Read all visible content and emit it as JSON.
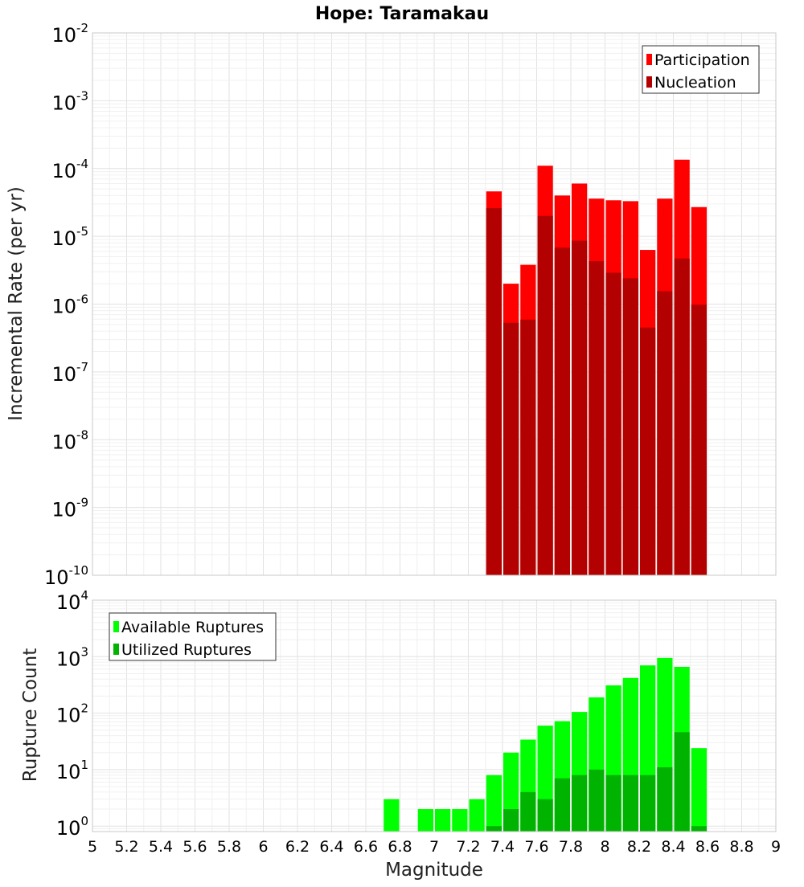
{
  "chart_data": [
    {
      "type": "bar",
      "title": "Hope: Taramakau",
      "ylabel": "Incremental Rate (per yr)",
      "xlabel": "",
      "y_scale": "log",
      "ylim": [
        1e-10,
        0.01
      ],
      "xlim": [
        5,
        9
      ],
      "y_ticks": [
        {
          "base": "10",
          "exp": "-10",
          "value": 1e-10
        },
        {
          "base": "10",
          "exp": "-9",
          "value": 1e-09
        },
        {
          "base": "10",
          "exp": "-8",
          "value": 1e-08
        },
        {
          "base": "10",
          "exp": "-7",
          "value": 1e-07
        },
        {
          "base": "10",
          "exp": "-6",
          "value": 1e-06
        },
        {
          "base": "10",
          "exp": "-5",
          "value": 1e-05
        },
        {
          "base": "10",
          "exp": "-4",
          "value": 0.0001
        },
        {
          "base": "10",
          "exp": "-3",
          "value": 0.001
        },
        {
          "base": "10",
          "exp": "-2",
          "value": 0.01
        }
      ],
      "legend_position": "top-right",
      "grid": true,
      "x": [
        7.35,
        7.45,
        7.55,
        7.65,
        7.75,
        7.85,
        7.95,
        8.05,
        8.15,
        8.25,
        8.35,
        8.45,
        8.55
      ],
      "series": [
        {
          "name": "Participation",
          "color": "#ff0000",
          "values": [
            4.6e-05,
            2e-06,
            3.8e-06,
            0.00011,
            4e-05,
            6e-05,
            3.6e-05,
            3.4e-05,
            3.3e-05,
            6.3e-06,
            3.6e-05,
            0.000135,
            2.7e-05
          ]
        },
        {
          "name": "Nucleation",
          "color": "#b30000",
          "values": [
            2.6e-05,
            5.3e-07,
            5.9e-07,
            2e-05,
            6.8e-06,
            8.6e-06,
            4.3e-06,
            2.9e-06,
            2.4e-06,
            4.5e-07,
            1.55e-06,
            4.7e-06,
            9.8e-07
          ]
        }
      ]
    },
    {
      "type": "bar",
      "title": "",
      "ylabel": "Rupture Count",
      "xlabel": "Magnitude",
      "y_scale": "log",
      "ylim": [
        0.8,
        10000
      ],
      "xlim": [
        5,
        9
      ],
      "y_ticks": [
        {
          "base": "10",
          "exp": "0",
          "value": 1
        },
        {
          "base": "10",
          "exp": "1",
          "value": 10
        },
        {
          "base": "10",
          "exp": "2",
          "value": 100
        },
        {
          "base": "10",
          "exp": "3",
          "value": 1000
        },
        {
          "base": "10",
          "exp": "4",
          "value": 10000
        }
      ],
      "x_ticks": [
        "5",
        "5.2",
        "5.4",
        "5.6",
        "5.8",
        "6",
        "6.2",
        "6.4",
        "6.6",
        "6.8",
        "7",
        "7.2",
        "7.4",
        "7.6",
        "7.8",
        "8",
        "8.2",
        "8.4",
        "8.6",
        "8.8",
        "9"
      ],
      "legend_position": "top-left",
      "grid": true,
      "x": [
        6.75,
        6.85,
        6.95,
        7.05,
        7.15,
        7.25,
        7.35,
        7.45,
        7.55,
        7.65,
        7.75,
        7.85,
        7.95,
        8.05,
        8.15,
        8.25,
        8.35,
        8.45,
        8.55
      ],
      "series": [
        {
          "name": "Available Ruptures",
          "color": "#00ff00",
          "values": [
            3,
            null,
            2,
            2,
            2,
            3,
            8,
            20,
            34,
            60,
            72,
            105,
            190,
            310,
            420,
            700,
            950,
            660,
            24
          ]
        },
        {
          "name": "Utilized Ruptures",
          "color": "#00b300",
          "values": [
            null,
            null,
            null,
            null,
            null,
            null,
            1,
            2,
            4,
            3,
            7,
            8,
            10,
            8,
            8,
            8,
            11,
            46,
            1
          ]
        }
      ]
    }
  ]
}
